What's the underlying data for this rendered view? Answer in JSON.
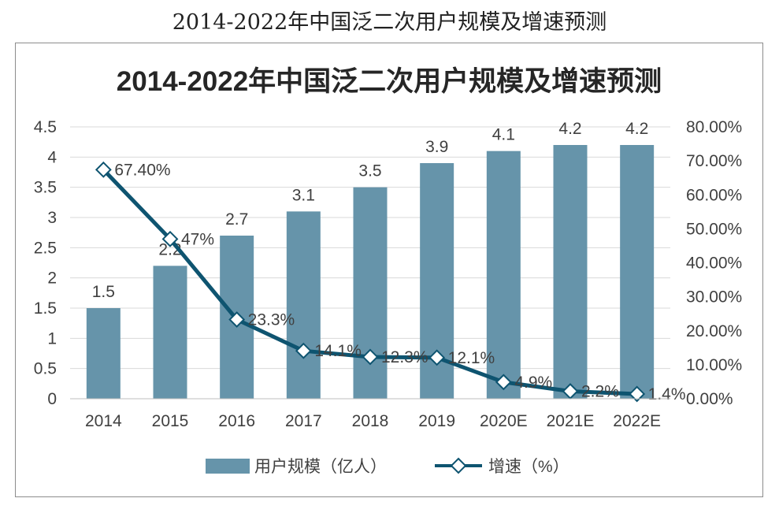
{
  "page": {
    "caption": "2014-2022年中国泛二次用户规模及增速预测"
  },
  "chart_data": {
    "type": "bar",
    "title": "2014-2022年中国泛二次用户规模及增速预测",
    "categories": [
      "2014",
      "2015",
      "2016",
      "2017",
      "2018",
      "2019",
      "2020E",
      "2021E",
      "2022E"
    ],
    "series": [
      {
        "name": "用户规模（亿人）",
        "type": "bar",
        "axis": "left",
        "values": [
          1.5,
          2.2,
          2.7,
          3.1,
          3.5,
          3.9,
          4.1,
          4.2,
          4.2
        ],
        "labels": [
          "1.5",
          "2.2",
          "2.7",
          "3.1",
          "3.5",
          "3.9",
          "4.1",
          "4.2",
          "4.2"
        ]
      },
      {
        "name": "增速（%）",
        "type": "line",
        "axis": "right",
        "values": [
          67.4,
          47,
          23.3,
          14.1,
          12.3,
          12.1,
          4.9,
          2.2,
          1.4
        ],
        "labels": [
          "67.40%",
          "47%",
          "23.3%",
          "14.1%",
          "12.3%",
          "12.1%",
          "4.9%",
          "2.2%",
          "1.4%"
        ]
      }
    ],
    "y_left": {
      "min": 0,
      "max": 4.5,
      "ticks": [
        "0",
        "0.5",
        "1",
        "1.5",
        "2",
        "2.5",
        "3",
        "3.5",
        "4",
        "4.5"
      ]
    },
    "y_right": {
      "min": 0,
      "max": 80,
      "ticks": [
        "0.00%",
        "10.00%",
        "20.00%",
        "30.00%",
        "40.00%",
        "50.00%",
        "60.00%",
        "70.00%",
        "80.00%"
      ]
    },
    "grid": true,
    "legend": "bottom",
    "colors": {
      "bar": "#6694AA",
      "line": "#0E5470",
      "marker_fill": "#ffffff",
      "grid": "#d9d9d9",
      "text": "#404040"
    }
  }
}
